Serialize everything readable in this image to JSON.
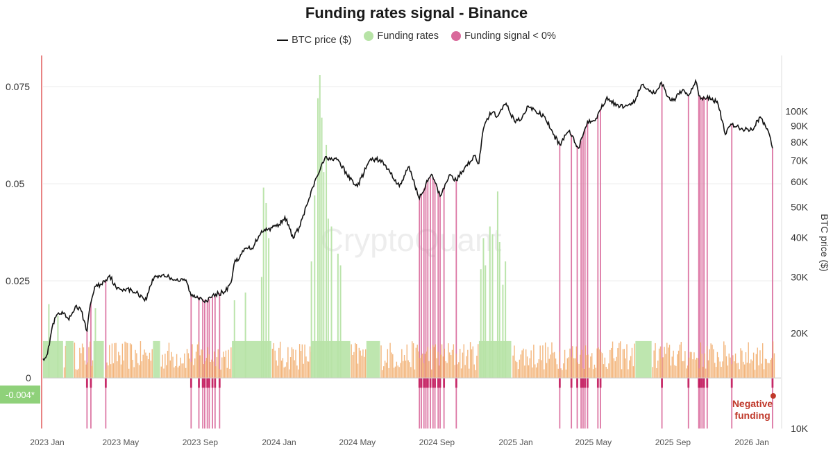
{
  "chart_data": {
    "type": "bar",
    "title": "Funding rates signal - Binance",
    "watermark": "CryptoQuant",
    "legend": [
      {
        "name": "BTC price ($)",
        "color": "#111111",
        "kind": "line"
      },
      {
        "name": "Funding rates",
        "color": "#b7e3a6",
        "kind": "dot"
      },
      {
        "name": "Funding signal < 0%",
        "color": "#d9699b",
        "kind": "dot"
      }
    ],
    "left_axis": {
      "ticks": [
        0,
        0.025,
        0.05,
        0.075
      ],
      "tick_labels": [
        "0",
        "0.025",
        "0.05",
        "0.075"
      ],
      "range": [
        -0.013,
        0.083
      ]
    },
    "right_axis": {
      "title": "BTC price ($)",
      "scale": "log",
      "range": [
        10000,
        150000
      ],
      "ticks": [
        10000,
        20000,
        30000,
        40000,
        50000,
        60000,
        70000,
        80000,
        90000,
        100000
      ],
      "tick_labels": [
        "10K",
        "20K",
        "30K",
        "40K",
        "50K",
        "60K",
        "70K",
        "80K",
        "90K",
        "100K"
      ]
    },
    "x_axis": {
      "range": [
        "2023-01-01",
        "2026-02-15"
      ],
      "ticks": [
        "2023-01-01",
        "2023-05-01",
        "2023-09-01",
        "2024-01-01",
        "2024-05-01",
        "2024-09-01",
        "2025-01-01",
        "2025-05-01",
        "2025-09-01",
        "2026-01-01"
      ],
      "tick_labels": [
        "2023 Jan",
        "2023 May",
        "2023 Sep",
        "2024 Jan",
        "2024 May",
        "2024 Sep",
        "2025 Jan",
        "2025 May",
        "2025 Sep",
        "2026 Jan"
      ]
    },
    "current_value_label": "-0.004*",
    "annotation": "Negative funding",
    "btc_price": {
      "dates": [
        "2023-01-01",
        "2023-01-08",
        "2023-01-15",
        "2023-01-22",
        "2023-02-01",
        "2023-02-10",
        "2023-02-20",
        "2023-03-01",
        "2023-03-10",
        "2023-03-15",
        "2023-03-22",
        "2023-04-01",
        "2023-04-14",
        "2023-04-25",
        "2023-05-10",
        "2023-05-25",
        "2023-06-10",
        "2023-06-15",
        "2023-06-22",
        "2023-07-05",
        "2023-07-15",
        "2023-08-01",
        "2023-08-10",
        "2023-08-18",
        "2023-09-01",
        "2023-09-11",
        "2023-09-25",
        "2023-10-10",
        "2023-10-20",
        "2023-10-25",
        "2023-11-01",
        "2023-11-10",
        "2023-11-20",
        "2023-12-05",
        "2023-12-15",
        "2024-01-01",
        "2024-01-10",
        "2024-01-23",
        "2024-02-01",
        "2024-02-15",
        "2024-02-28",
        "2024-03-05",
        "2024-03-14",
        "2024-03-25",
        "2024-04-01",
        "2024-04-15",
        "2024-05-01",
        "2024-05-20",
        "2024-06-05",
        "2024-06-20",
        "2024-07-05",
        "2024-07-20",
        "2024-08-05",
        "2024-08-15",
        "2024-08-25",
        "2024-09-06",
        "2024-09-20",
        "2024-10-01",
        "2024-10-15",
        "2024-10-29",
        "2024-11-05",
        "2024-11-12",
        "2024-11-22",
        "2024-12-05",
        "2024-12-17",
        "2024-12-30",
        "2025-01-10",
        "2025-01-20",
        "2025-02-01",
        "2025-02-15",
        "2025-02-28",
        "2025-03-10",
        "2025-03-25",
        "2025-04-08",
        "2025-04-22",
        "2025-05-05",
        "2025-05-22",
        "2025-06-05",
        "2025-06-22",
        "2025-07-05",
        "2025-07-14",
        "2025-07-25",
        "2025-08-05",
        "2025-08-14",
        "2025-08-25",
        "2025-09-01",
        "2025-09-15",
        "2025-09-25",
        "2025-10-06",
        "2025-10-11",
        "2025-10-20",
        "2025-11-01",
        "2025-11-10",
        "2025-11-21",
        "2025-12-01",
        "2025-12-15",
        "2026-01-01",
        "2026-01-14",
        "2026-01-25",
        "2026-02-02"
      ],
      "values": [
        16600,
        17200,
        20800,
        22800,
        23000,
        22000,
        24300,
        23500,
        20300,
        24500,
        28000,
        28500,
        30400,
        27500,
        27600,
        26800,
        25500,
        28000,
        30000,
        30500,
        30000,
        29200,
        29400,
        26200,
        25900,
        25200,
        26500,
        27000,
        29500,
        34000,
        34500,
        37000,
        37000,
        42000,
        42500,
        44000,
        46500,
        39800,
        43000,
        52000,
        62000,
        66000,
        72000,
        70000,
        70500,
        63000,
        58000,
        70000,
        70500,
        64500,
        58000,
        67000,
        53000,
        59000,
        63000,
        54000,
        63000,
        60500,
        67000,
        72500,
        68500,
        88000,
        99000,
        97000,
        106000,
        93000,
        94500,
        104000,
        100000,
        96000,
        84500,
        78500,
        87000,
        76500,
        93000,
        95000,
        111000,
        104000,
        104000,
        108500,
        121000,
        117500,
        114000,
        123500,
        111000,
        108000,
        116000,
        112000,
        125000,
        112000,
        110000,
        110000,
        105000,
        84500,
        91000,
        88000,
        87500,
        96000,
        88000,
        76500
      ]
    },
    "funding_rate_bands": [
      {
        "start": "2023-01-01",
        "end": "2023-02-01",
        "value": 0.0095
      },
      {
        "start": "2023-02-05",
        "end": "2023-02-17",
        "value": 0.0095
      },
      {
        "start": "2023-03-20",
        "end": "2023-04-05",
        "value": 0.0095
      },
      {
        "start": "2023-06-20",
        "end": "2023-07-01",
        "value": 0.0095
      },
      {
        "start": "2023-10-20",
        "end": "2023-12-20",
        "value": 0.0095
      },
      {
        "start": "2024-02-20",
        "end": "2024-04-20",
        "value": 0.0095
      },
      {
        "start": "2024-05-15",
        "end": "2024-06-05",
        "value": 0.0095
      },
      {
        "start": "2024-11-05",
        "end": "2024-12-25",
        "value": 0.0095
      },
      {
        "start": "2025-07-05",
        "end": "2025-07-30",
        "value": 0.0095
      }
    ],
    "funding_rate_spikes": [
      {
        "date": "2023-01-10",
        "value": 0.019
      },
      {
        "date": "2023-01-24",
        "value": 0.016
      },
      {
        "date": "2023-03-23",
        "value": 0.018
      },
      {
        "date": "2023-10-24",
        "value": 0.02
      },
      {
        "date": "2023-11-10",
        "value": 0.022
      },
      {
        "date": "2023-12-05",
        "value": 0.026
      },
      {
        "date": "2023-12-08",
        "value": 0.049
      },
      {
        "date": "2023-12-12",
        "value": 0.045
      },
      {
        "date": "2023-12-16",
        "value": 0.036
      },
      {
        "date": "2024-02-20",
        "value": 0.03
      },
      {
        "date": "2024-02-25",
        "value": 0.047
      },
      {
        "date": "2024-03-01",
        "value": 0.072
      },
      {
        "date": "2024-03-04",
        "value": 0.078
      },
      {
        "date": "2024-03-07",
        "value": 0.067
      },
      {
        "date": "2024-03-10",
        "value": 0.053
      },
      {
        "date": "2024-03-14",
        "value": 0.06
      },
      {
        "date": "2024-03-17",
        "value": 0.041
      },
      {
        "date": "2024-03-22",
        "value": 0.039
      },
      {
        "date": "2024-04-01",
        "value": 0.032
      },
      {
        "date": "2024-04-05",
        "value": 0.029
      },
      {
        "date": "2024-11-08",
        "value": 0.028
      },
      {
        "date": "2024-11-12",
        "value": 0.036
      },
      {
        "date": "2024-11-15",
        "value": 0.029
      },
      {
        "date": "2024-11-22",
        "value": 0.039
      },
      {
        "date": "2024-11-26",
        "value": 0.037
      },
      {
        "date": "2024-12-04",
        "value": 0.048
      },
      {
        "date": "2024-12-07",
        "value": 0.035
      },
      {
        "date": "2024-12-12",
        "value": 0.024
      },
      {
        "date": "2024-12-16",
        "value": 0.03
      }
    ],
    "negative_signals": [
      "2023-03-10",
      "2023-03-16",
      "2023-04-08",
      "2023-08-18",
      "2023-08-30",
      "2023-09-05",
      "2023-09-08",
      "2023-09-12",
      "2023-09-15",
      "2023-09-20",
      "2023-09-24",
      "2023-10-01",
      "2024-08-05",
      "2024-08-08",
      "2024-08-12",
      "2024-08-15",
      "2024-08-18",
      "2024-08-22",
      "2024-08-26",
      "2024-08-29",
      "2024-09-03",
      "2024-09-06",
      "2024-09-12",
      "2024-10-01",
      "2025-03-10",
      "2025-03-28",
      "2025-04-06",
      "2025-04-12",
      "2025-04-15",
      "2025-04-18",
      "2025-04-22",
      "2025-05-08",
      "2025-05-12",
      "2025-08-15",
      "2025-09-25",
      "2025-10-11",
      "2025-10-13",
      "2025-10-16",
      "2025-10-19",
      "2025-10-24",
      "2025-12-01",
      "2026-02-02"
    ]
  }
}
